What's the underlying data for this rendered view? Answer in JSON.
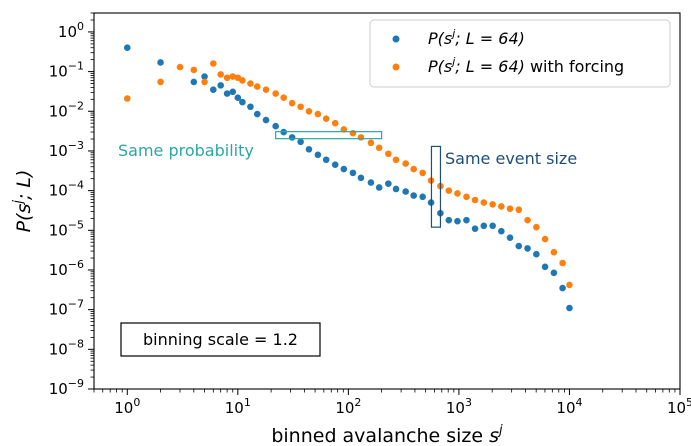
{
  "chart_data": {
    "type": "scatter",
    "xscale": "log",
    "yscale": "log",
    "xlim": [
      0.5,
      100000
    ],
    "ylim": [
      1e-09,
      3
    ],
    "xlabel_main": "binned avalanche size ",
    "xlabel_var": "s",
    "xlabel_sup": "j",
    "ylabel": "P(s^j; L)",
    "x_ticks": [
      {
        "value": 1,
        "base": "10",
        "exp": "0"
      },
      {
        "value": 10,
        "base": "10",
        "exp": "1"
      },
      {
        "value": 100,
        "base": "10",
        "exp": "2"
      },
      {
        "value": 1000,
        "base": "10",
        "exp": "3"
      },
      {
        "value": 10000,
        "base": "10",
        "exp": "4"
      },
      {
        "value": 100000,
        "base": "10",
        "exp": "5"
      }
    ],
    "y_ticks": [
      {
        "value": 1,
        "base": "10",
        "exp": "0"
      },
      {
        "value": 0.1,
        "base": "10",
        "exp": "−1"
      },
      {
        "value": 0.01,
        "base": "10",
        "exp": "−2"
      },
      {
        "value": 0.001,
        "base": "10",
        "exp": "−3"
      },
      {
        "value": 0.0001,
        "base": "10",
        "exp": "−4"
      },
      {
        "value": 1e-05,
        "base": "10",
        "exp": "−5"
      },
      {
        "value": 1e-06,
        "base": "10",
        "exp": "−6"
      },
      {
        "value": 1e-07,
        "base": "10",
        "exp": "−7"
      },
      {
        "value": 1e-08,
        "base": "10",
        "exp": "−8"
      },
      {
        "value": 1e-09,
        "base": "10",
        "exp": "−9"
      }
    ],
    "series": [
      {
        "name": "P(s^j; L = 64)",
        "color": "#1f77b4",
        "points": [
          [
            1,
            0.4
          ],
          [
            2,
            0.17
          ],
          [
            4,
            0.055
          ],
          [
            5,
            0.075
          ],
          [
            6,
            0.035
          ],
          [
            7,
            0.045
          ],
          [
            8,
            0.028
          ],
          [
            9,
            0.031
          ],
          [
            10,
            0.022
          ],
          [
            11,
            0.017
          ],
          [
            13,
            0.013
          ],
          [
            15,
            0.0085
          ],
          [
            18,
            0.006
          ],
          [
            22,
            0.0042
          ],
          [
            26,
            0.003
          ],
          [
            31,
            0.0022
          ],
          [
            37,
            0.0017
          ],
          [
            44,
            0.0011
          ],
          [
            53,
            0.0008
          ],
          [
            63,
            0.0006
          ],
          [
            76,
            0.00045
          ],
          [
            91,
            0.00035
          ],
          [
            110,
            0.00028
          ],
          [
            130,
            0.00021
          ],
          [
            160,
            0.00016
          ],
          [
            190,
            0.00012
          ],
          [
            230,
            0.00015
          ],
          [
            270,
            0.00011
          ],
          [
            330,
            9.5e-05
          ],
          [
            390,
            7.5e-05
          ],
          [
            470,
            7e-05
          ],
          [
            560,
            5e-05
          ],
          [
            680,
            2.7e-05
          ],
          [
            810,
            1.8e-05
          ],
          [
            970,
            1.7e-05
          ],
          [
            1170,
            1.8e-05
          ],
          [
            1400,
            1.1e-05
          ],
          [
            1680,
            1.3e-05
          ],
          [
            2020,
            1.3e-05
          ],
          [
            2420,
            9.5e-06
          ],
          [
            2900,
            6.5e-06
          ],
          [
            3480,
            4e-06
          ],
          [
            4180,
            3.5e-06
          ],
          [
            5020,
            2.5e-06
          ],
          [
            6020,
            1.2e-06
          ],
          [
            7230,
            8.5e-07
          ],
          [
            8670,
            3.5e-07
          ],
          [
            10000,
            1.1e-07
          ]
        ]
      },
      {
        "name": "P(s^j; L = 64) with forcing",
        "color": "#ff7f0e",
        "points": [
          [
            1,
            0.021
          ],
          [
            2,
            0.055
          ],
          [
            3,
            0.13
          ],
          [
            4,
            0.11
          ],
          [
            5,
            0.055
          ],
          [
            6,
            0.16
          ],
          [
            7,
            0.085
          ],
          [
            8,
            0.07
          ],
          [
            9,
            0.075
          ],
          [
            10,
            0.07
          ],
          [
            11,
            0.06
          ],
          [
            13,
            0.05
          ],
          [
            15,
            0.042
          ],
          [
            18,
            0.035
          ],
          [
            22,
            0.028
          ],
          [
            26,
            0.022
          ],
          [
            31,
            0.016
          ],
          [
            37,
            0.013
          ],
          [
            44,
            0.01
          ],
          [
            53,
            0.0085
          ],
          [
            63,
            0.0065
          ],
          [
            76,
            0.005
          ],
          [
            91,
            0.0035
          ],
          [
            110,
            0.0028
          ],
          [
            130,
            0.0022
          ],
          [
            160,
            0.0016
          ],
          [
            190,
            0.0012
          ],
          [
            230,
            0.00085
          ],
          [
            270,
            0.0006
          ],
          [
            330,
            0.00048
          ],
          [
            390,
            0.00035
          ],
          [
            470,
            0.00028
          ],
          [
            560,
            0.00018
          ],
          [
            680,
            0.00013
          ],
          [
            810,
            0.0001
          ],
          [
            970,
            8.5e-05
          ],
          [
            1170,
            7e-05
          ],
          [
            1400,
            5.8e-05
          ],
          [
            1680,
            5e-05
          ],
          [
            2020,
            4.5e-05
          ],
          [
            2420,
            4e-05
          ],
          [
            2900,
            3.5e-05
          ],
          [
            3480,
            3.3e-05
          ],
          [
            4180,
            1.8e-05
          ],
          [
            5020,
            1.2e-05
          ],
          [
            6020,
            6e-06
          ],
          [
            7230,
            2.8e-06
          ],
          [
            8670,
            1.5e-06
          ],
          [
            10000,
            4.2e-07
          ]
        ]
      }
    ],
    "legend": {
      "placement": "top-right",
      "entries": [
        {
          "prefix": "P(s",
          "sup": "j",
          "mid": "; L = 64)",
          "suffix": ""
        },
        {
          "prefix": "P(s",
          "sup": "j",
          "mid": "; L = 64)",
          "suffix": " with forcing"
        }
      ]
    },
    "annotations": {
      "same_probability": {
        "text": "Same probability",
        "color": "#2ca6a4",
        "x_range": [
          22,
          200
        ],
        "y": 0.0025
      },
      "same_event_size": {
        "text": "Same event size",
        "color": "#1f4e79",
        "x": 620,
        "y_range": [
          1.2e-05,
          0.0013
        ]
      },
      "binning_scale": {
        "text": "binning scale = 1.2"
      }
    }
  }
}
